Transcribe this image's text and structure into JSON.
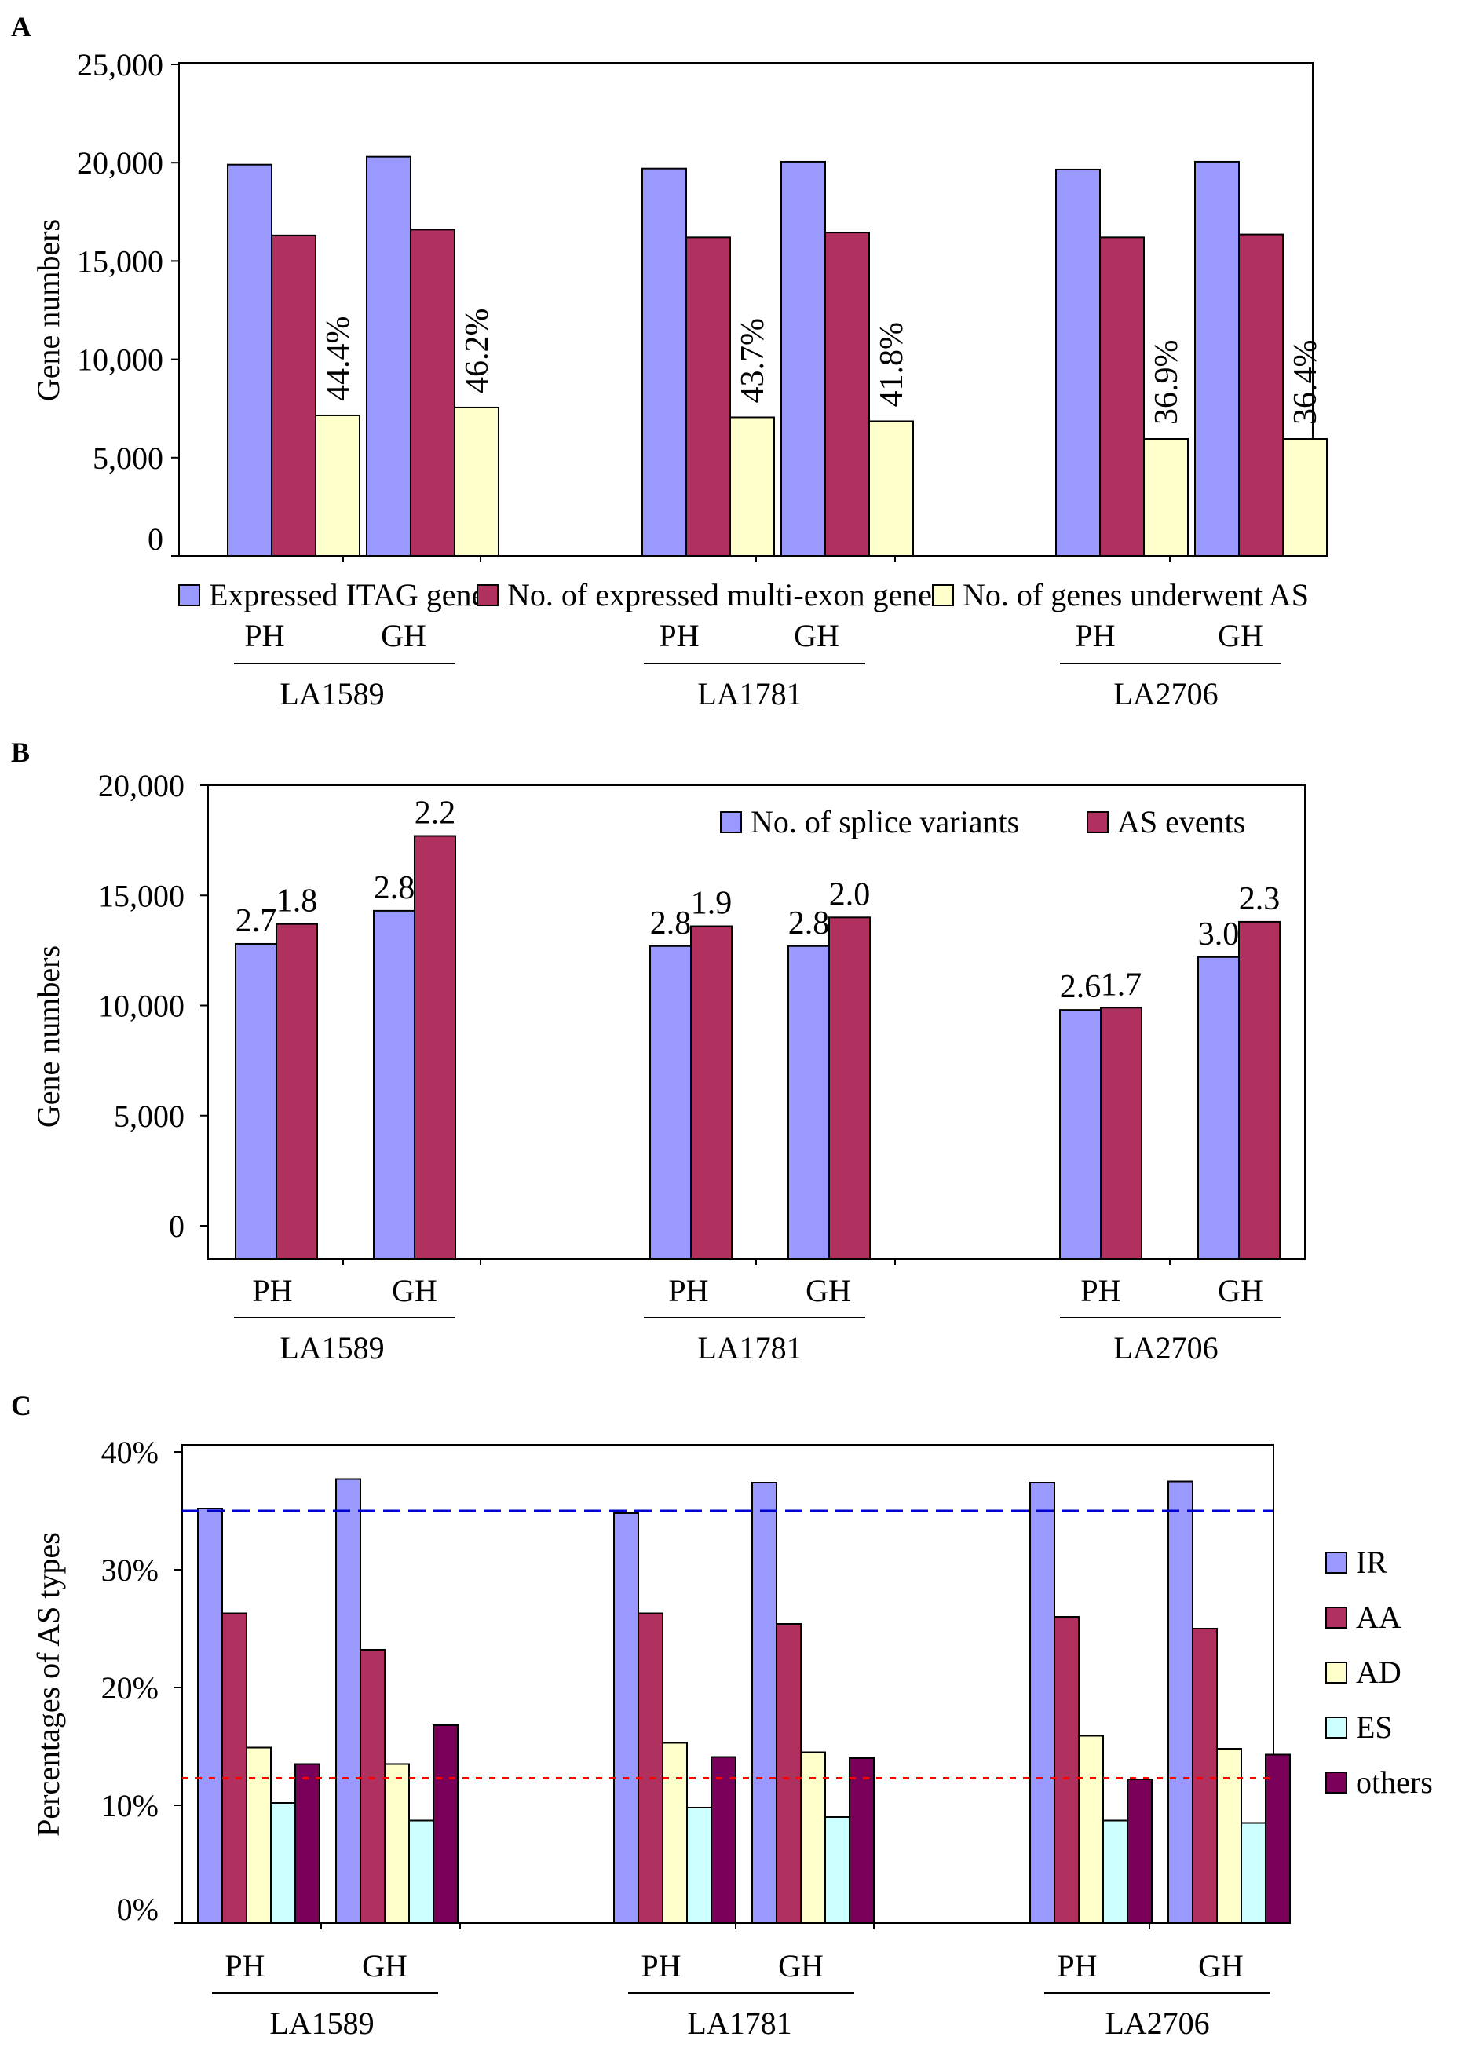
{
  "panel_labels": [
    "A",
    "B",
    "C"
  ],
  "colors": {
    "periwinkle": "#9999ff",
    "plum": "#b03060",
    "lightyellow": "#ffffcc",
    "lightcyan": "#ccffff",
    "purple": "#7a005a",
    "blue_dash": "#0000cc",
    "red_dash": "#ff0000"
  },
  "chart_data": [
    {
      "panel": "A",
      "type": "bar",
      "ylabel": "Gene numbers",
      "ylim": [
        0,
        25000
      ],
      "yticks": [
        0,
        5000,
        10000,
        15000,
        20000,
        25000
      ],
      "ytick_labels": [
        "0",
        "5,000",
        "10,000",
        "15,000",
        "20,000",
        "25,000"
      ],
      "groups": [
        "LA1589",
        "LA1781",
        "LA2706"
      ],
      "categories": [
        "PH",
        "GH"
      ],
      "series": [
        {
          "name": "Expressed ITAG genes",
          "color": "#9999ff",
          "values": [
            [
              19900,
              20300
            ],
            [
              19700,
              20050
            ],
            [
              19650,
              20050
            ]
          ]
        },
        {
          "name": "No. of expressed multi-exon genes",
          "color": "#b03060",
          "values": [
            [
              16300,
              16600
            ],
            [
              16200,
              16450
            ],
            [
              16200,
              16350
            ]
          ]
        },
        {
          "name": "No. of genes underwent AS",
          "color": "#ffffcc",
          "values": [
            [
              7150,
              7550
            ],
            [
              7050,
              6850
            ],
            [
              5950,
              5950
            ]
          ],
          "labels": [
            [
              "44.4%",
              "46.2%"
            ],
            [
              "43.7%",
              "41.8%"
            ],
            [
              "36.9%",
              "36.4%"
            ]
          ]
        }
      ],
      "legend_position": "bottom"
    },
    {
      "panel": "B",
      "type": "bar",
      "ylabel": "Gene numbers",
      "ylim": [
        -1200,
        20700
      ],
      "yticks": [
        0,
        5000,
        10000,
        15000,
        20000
      ],
      "ytick_labels": [
        "0",
        "5,000",
        "10,000",
        "15,000",
        "20,000"
      ],
      "groups": [
        "LA1589",
        "LA1781",
        "LA2706"
      ],
      "categories": [
        "PH",
        "GH"
      ],
      "series": [
        {
          "name": "No. of splice variants",
          "color": "#9999ff",
          "values": [
            [
              12800,
              14300
            ],
            [
              12700,
              12700
            ],
            [
              9800,
              12200
            ]
          ],
          "labels": [
            [
              "2.7",
              "2.8"
            ],
            [
              "2.8",
              "2.8"
            ],
            [
              "2.6",
              "3.0"
            ]
          ]
        },
        {
          "name": "AS events",
          "color": "#b03060",
          "values": [
            [
              13700,
              17700
            ],
            [
              13600,
              14000
            ],
            [
              9900,
              13800
            ]
          ],
          "labels": [
            [
              "1.8",
              "2.2"
            ],
            [
              "1.9",
              "2.0"
            ],
            [
              "1.7",
              "2.3"
            ]
          ]
        }
      ],
      "legend_position": "top-right"
    },
    {
      "panel": "C",
      "type": "bar",
      "ylabel": "Percentages of AS types",
      "ylim": [
        0,
        40
      ],
      "yticks": [
        0,
        10,
        20,
        30,
        40
      ],
      "ytick_labels": [
        "0%",
        "10%",
        "20%",
        "30%",
        "40%"
      ],
      "groups": [
        "LA1589",
        "LA1781",
        "LA2706"
      ],
      "categories": [
        "PH",
        "GH"
      ],
      "series": [
        {
          "name": "IR",
          "color": "#9999ff",
          "values": [
            [
              35.2,
              37.7
            ],
            [
              34.8,
              37.4
            ],
            [
              37.4,
              37.5
            ]
          ]
        },
        {
          "name": "AA",
          "color": "#b03060",
          "values": [
            [
              26.3,
              23.2
            ],
            [
              26.3,
              25.4
            ],
            [
              26.0,
              25.0
            ]
          ]
        },
        {
          "name": "AD",
          "color": "#ffffcc",
          "values": [
            [
              14.9,
              13.5
            ],
            [
              15.3,
              14.5
            ],
            [
              15.9,
              14.8
            ]
          ]
        },
        {
          "name": "ES",
          "color": "#ccffff",
          "values": [
            [
              10.2,
              8.7
            ],
            [
              9.8,
              9.0
            ],
            [
              8.7,
              8.5
            ]
          ]
        },
        {
          "name": "others",
          "color": "#7a005a",
          "values": [
            [
              13.5,
              16.8
            ],
            [
              14.1,
              14.0
            ],
            [
              12.2,
              14.3
            ]
          ]
        }
      ],
      "reference_lines": [
        {
          "value": 35.0,
          "color": "#0000cc",
          "style": "dashed"
        },
        {
          "value": 12.3,
          "color": "#ff0000",
          "style": "dotted"
        }
      ],
      "legend_position": "right"
    }
  ]
}
